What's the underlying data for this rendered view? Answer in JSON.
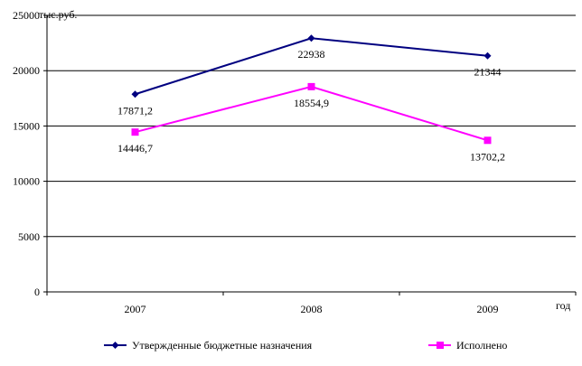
{
  "chart_data": {
    "type": "line",
    "y_unit_label": "тыс.руб.",
    "x_unit_label": "год",
    "categories": [
      "2007",
      "2008",
      "2009"
    ],
    "ylim": [
      0,
      25000
    ],
    "y_ticks": [
      0,
      5000,
      10000,
      15000,
      20000,
      25000
    ],
    "grid": true,
    "legend_position": "bottom",
    "series": [
      {
        "name": "Утвержденные бюджетные назначения",
        "values": [
          17871.2,
          22938,
          21344
        ],
        "labels": [
          "17871,2",
          "22938",
          "21344"
        ],
        "color": "#000080",
        "marker": "diamond"
      },
      {
        "name": "Исполнено",
        "values": [
          14446.7,
          18554.9,
          13702.2
        ],
        "labels": [
          "14446,7",
          "18554,9",
          "13702,2"
        ],
        "color": "#ff00ff",
        "marker": "square"
      }
    ]
  }
}
